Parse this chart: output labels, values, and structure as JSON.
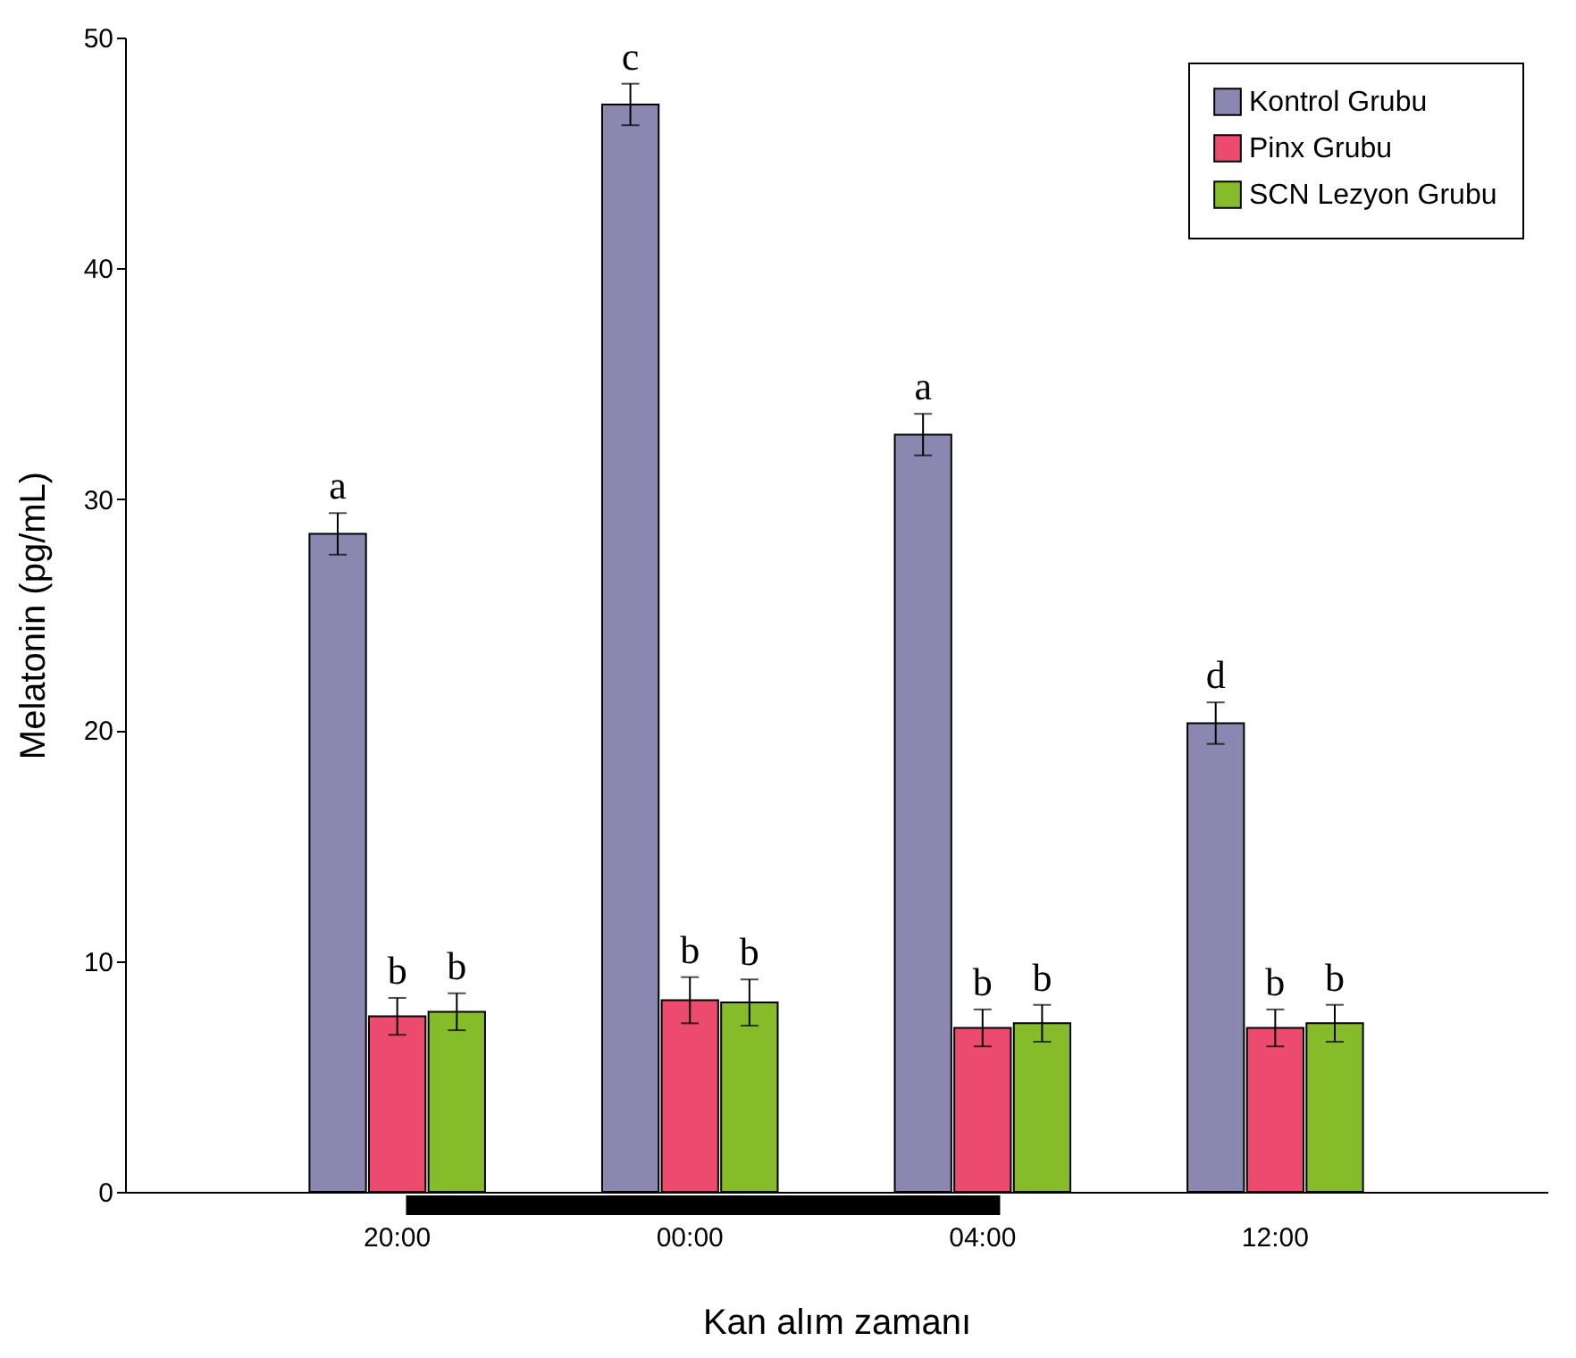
{
  "chart_data": {
    "type": "bar",
    "xlabel": "Kan alım zamanı",
    "ylabel": "Melatonin (pg/mL)",
    "categories": [
      "20:00",
      "00:00",
      "04:00",
      "12:00"
    ],
    "series": [
      {
        "name": "Kontrol Grubu",
        "color": "#8a88b0",
        "values": [
          28.5,
          47.1,
          32.8,
          20.3
        ],
        "errors": [
          0.9,
          0.9,
          0.9,
          0.9
        ],
        "value_labels": [
          "a",
          "c",
          "a",
          "d"
        ]
      },
      {
        "name": "Pinx Grubu",
        "color": "#ec4a6e",
        "values": [
          7.6,
          8.3,
          7.1,
          7.1
        ],
        "errors": [
          0.8,
          1.0,
          0.8,
          0.8
        ],
        "value_labels": [
          "b",
          "b",
          "b",
          "b"
        ]
      },
      {
        "name": "SCN Lezyon Grubu",
        "color": "#86bc2a",
        "values": [
          7.8,
          8.2,
          7.3,
          7.3
        ],
        "errors": [
          0.8,
          1.0,
          0.8,
          0.8
        ],
        "value_labels": [
          "b",
          "b",
          "b",
          "b"
        ]
      }
    ],
    "ylim": [
      0,
      50
    ],
    "yticks": [
      0,
      10,
      20,
      30,
      40,
      50
    ],
    "grid": false,
    "legend": "top right"
  }
}
